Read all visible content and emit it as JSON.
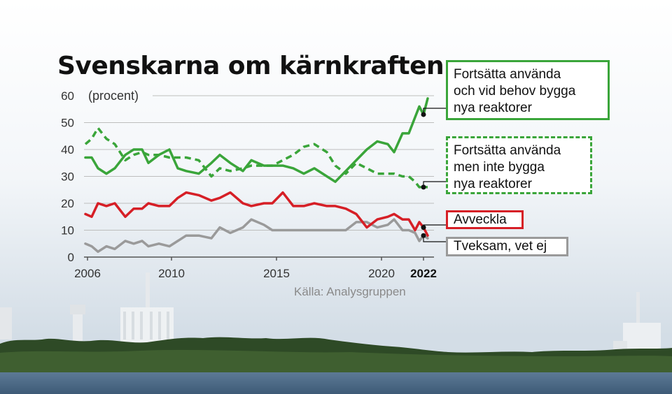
{
  "chart_data": {
    "type": "line",
    "title": "Svenskarna om kärnkraften",
    "ylabel": "(procent)",
    "source": "Källa: Analysgruppen",
    "ylim": [
      0,
      60
    ],
    "yticks": [
      0,
      10,
      20,
      30,
      40,
      50,
      60
    ],
    "xlim": [
      2005.5,
      2022.5
    ],
    "xticks": [
      {
        "value": 2006,
        "label": "2006"
      },
      {
        "value": 2010,
        "label": "2010"
      },
      {
        "value": 2015,
        "label": "2015"
      },
      {
        "value": 2020,
        "label": "2020"
      },
      {
        "value": 2022,
        "label": "2022"
      }
    ],
    "grid": "horizontal",
    "x": [
      2005.9,
      2006.2,
      2006.5,
      2006.9,
      2007.3,
      2007.8,
      2008.2,
      2008.6,
      2008.9,
      2009.4,
      2009.9,
      2010.3,
      2010.7,
      2011.3,
      2011.9,
      2012.3,
      2012.8,
      2013.4,
      2013.8,
      2014.4,
      2014.8,
      2015.3,
      2015.8,
      2016.3,
      2016.8,
      2017.4,
      2017.8,
      2018.3,
      2018.8,
      2019.3,
      2019.8,
      2020.3,
      2020.6,
      2021.0,
      2021.3,
      2021.6,
      2021.8,
      2022.0,
      2022.2
    ],
    "series": [
      {
        "name": "Fortsätta använda och vid behov bygga nya reaktorer",
        "color": "#3aa53a",
        "style": "solid",
        "values": [
          37,
          37,
          33,
          31,
          33,
          38,
          40,
          40,
          35,
          38,
          40,
          33,
          32,
          31,
          35,
          38,
          35,
          32,
          36,
          34,
          34,
          34,
          33,
          31,
          33,
          30,
          28,
          32,
          36,
          40,
          43,
          42,
          39,
          46,
          46,
          52,
          56,
          53,
          59
        ]
      },
      {
        "name": "Fortsätta använda men inte bygga nya reaktorer",
        "color": "#3aa53a",
        "style": "dashed",
        "values": [
          42,
          44,
          48,
          44,
          42,
          36,
          38,
          39,
          38,
          38,
          37,
          37,
          37,
          36,
          30,
          33,
          32,
          33,
          34,
          34,
          34,
          36,
          38,
          41,
          42,
          39,
          34,
          31,
          35,
          33,
          31,
          31,
          31,
          30,
          30,
          28,
          26,
          26,
          26
        ]
      },
      {
        "name": "Avveckla",
        "color": "#d61f26",
        "style": "solid",
        "values": [
          16,
          15,
          20,
          19,
          20,
          15,
          18,
          18,
          20,
          19,
          19,
          22,
          24,
          23,
          21,
          22,
          24,
          20,
          19,
          20,
          20,
          24,
          19,
          19,
          20,
          19,
          19,
          18,
          16,
          11,
          14,
          15,
          16,
          14,
          14,
          10,
          13,
          11,
          8
        ]
      },
      {
        "name": "Tveksam, vet ej",
        "color": "#9a9a9a",
        "style": "solid",
        "values": [
          5,
          4,
          2,
          4,
          3,
          6,
          5,
          6,
          4,
          5,
          4,
          6,
          8,
          8,
          7,
          11,
          9,
          11,
          14,
          12,
          10,
          10,
          10,
          10,
          10,
          10,
          10,
          10,
          13,
          13,
          11,
          12,
          14,
          10,
          10,
          9,
          6,
          8,
          7
        ]
      }
    ]
  },
  "legend": [
    {
      "lines": [
        "Fortsätta använda",
        "och vid behov bygga",
        "nya reaktorer"
      ]
    },
    {
      "lines": [
        "Fortsätta använda",
        "men inte bygga",
        "nya reaktorer"
      ]
    },
    {
      "lines": [
        "Avveckla"
      ]
    },
    {
      "lines": [
        "Tveksam, vet ej"
      ]
    }
  ]
}
